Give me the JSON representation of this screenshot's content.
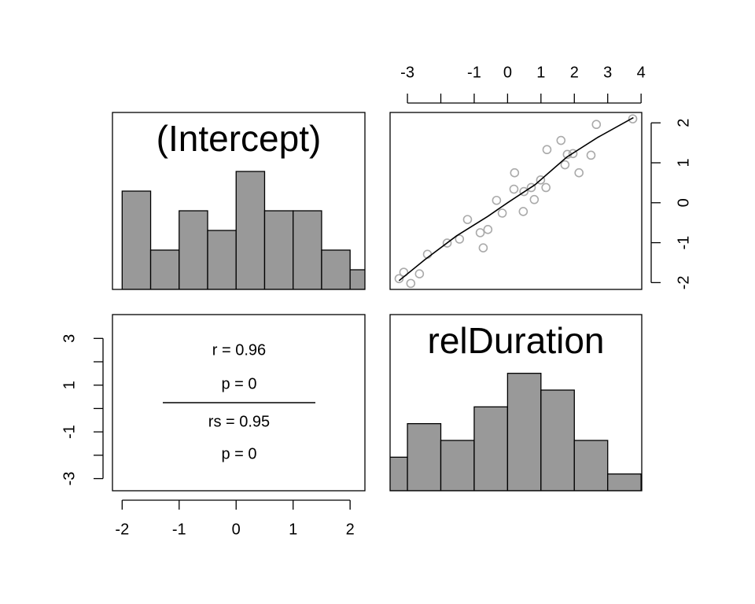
{
  "chart_data": [
    {
      "type": "histogram",
      "title": "(Intercept)",
      "bins": [
        -2,
        -1.5,
        -1,
        -0.5,
        0,
        0.5,
        1,
        1.5,
        2,
        2.5
      ],
      "values": [
        5,
        2,
        4,
        3,
        6,
        4,
        4,
        2,
        1
      ],
      "color": "#999999",
      "xlim": [
        -2.17,
        2.26
      ],
      "ylim": [
        0,
        9
      ]
    },
    {
      "type": "scatter",
      "xlim": [
        -3.52,
        4.02
      ],
      "ylim": [
        -2.17,
        2.26
      ],
      "xticks": [
        -3,
        {
          "value": -2,
          "label": null
        },
        -1,
        0,
        1,
        2,
        3,
        4
      ],
      "yticks": [
        2,
        1,
        0,
        -1,
        -2
      ],
      "xaxis": "top",
      "yaxis": "right",
      "series": [
        {
          "mode": "points",
          "color": "#aaaaaa",
          "x": [
            -3.25,
            -3.11,
            -2.9,
            -2.64,
            -2.4,
            -1.81,
            -1.44,
            -1.2,
            -0.82,
            -0.73,
            -0.59,
            -0.33,
            -0.16,
            0.21,
            0.19,
            0.47,
            0.49,
            0.71,
            0.8,
            0.99,
            1.18,
            1.15,
            1.6,
            1.72,
            1.79,
            1.96,
            2.14,
            2.5,
            2.66,
            3.75
          ],
          "values": [
            -1.9,
            -1.74,
            -2.02,
            -1.78,
            -1.29,
            -1.01,
            -0.91,
            -0.42,
            -0.75,
            -1.13,
            -0.67,
            0.06,
            -0.26,
            0.75,
            0.34,
            -0.22,
            0.28,
            0.38,
            0.08,
            0.57,
            1.33,
            0.38,
            1.56,
            0.95,
            1.21,
            1.23,
            0.75,
            1.19,
            1.96,
            2.1
          ]
        },
        {
          "mode": "line",
          "color": "#000000",
          "x": [
            -3.25,
            -2.47,
            -1.53,
            -0.59,
            0,
            0.82,
            1.77,
            2.71,
            3.77
          ],
          "values": [
            -1.95,
            -1.42,
            -0.83,
            -0.34,
            0,
            0.45,
            1.14,
            1.64,
            2.13
          ]
        }
      ]
    },
    {
      "type": "correlation",
      "annotations": [
        "r = 0.96",
        "p = 0",
        "rs = 0.95",
        "p = 0"
      ],
      "xlim": [
        -2.17,
        2.26
      ],
      "xticks": [
        -2,
        -1,
        0,
        1,
        2
      ],
      "ylim": [
        -3.52,
        4.02
      ],
      "yticks": [
        -3,
        {
          "value": -2,
          "label": null
        },
        -1,
        {
          "value": 0,
          "label": null
        },
        1,
        {
          "value": 2,
          "label": null
        },
        3
      ],
      "xaxis": "bottom",
      "yaxis": "left"
    },
    {
      "type": "histogram",
      "title": "relDuration",
      "bins": [
        -4,
        -3,
        -2,
        -1,
        0,
        1,
        2,
        3,
        4
      ],
      "values": [
        2,
        4,
        3,
        5,
        7,
        6,
        3,
        1
      ],
      "color": "#999999",
      "xlim": [
        -3.52,
        4.02
      ],
      "ylim": [
        0,
        10.5
      ]
    }
  ]
}
